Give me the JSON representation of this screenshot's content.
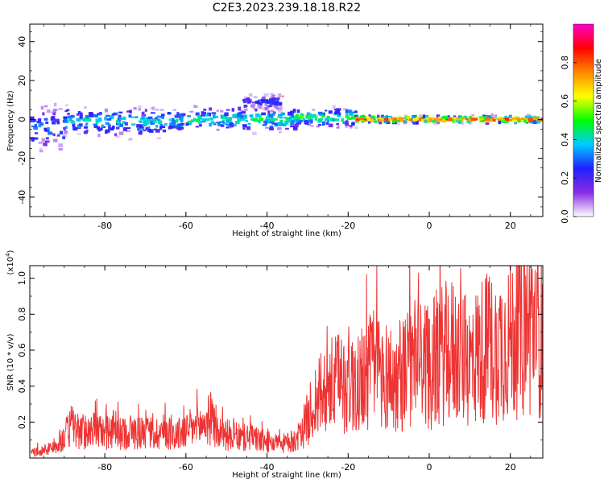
{
  "title": "C2E3.2023.239.18.18.R22",
  "chart_data": [
    {
      "type": "heatmap",
      "xlabel": "Height of straight line (km)",
      "ylabel": "Frequency (Hz)",
      "xlim": [
        -98.5,
        28
      ],
      "ylim": [
        -50,
        49
      ],
      "xticks": [
        -80,
        -60,
        -40,
        -20,
        0,
        20
      ],
      "yticks": [
        -40,
        -20,
        0,
        20,
        40
      ],
      "colorbar": {
        "label": "Normalized spectral amplitude",
        "range": [
          0,
          1
        ],
        "ticks": [
          0.0,
          0.2,
          0.4,
          0.6,
          0.8
        ],
        "colors": [
          "#ffffff",
          "#8a2be2",
          "#2020ff",
          "#00ccff",
          "#00ff00",
          "#ffff00",
          "#ff8800",
          "#ff0000",
          "#ff00cc"
        ]
      },
      "ridge_regions": [
        {
          "x": [
            -98,
            -90
          ],
          "freq_center": -4,
          "freq_spread": 10,
          "amplitude": 0.3
        },
        {
          "x": [
            -90,
            -60
          ],
          "freq_center": -1,
          "freq_spread": 6,
          "amplitude": 0.4
        },
        {
          "x": [
            -60,
            -33
          ],
          "freq_center": 0,
          "freq_spread": 5,
          "amplitude": 0.45
        },
        {
          "x": [
            -46,
            -36
          ],
          "freq_center": 9,
          "freq_spread": 3,
          "amplitude": 0.25
        },
        {
          "x": [
            -33,
            -18
          ],
          "freq_center": 1,
          "freq_spread": 4,
          "amplitude": 0.5
        },
        {
          "x": [
            -18,
            28
          ],
          "freq_center": 0,
          "freq_spread": 1.5,
          "amplitude": 0.85
        }
      ]
    },
    {
      "type": "line",
      "xlabel": "Height of straight line (km)",
      "ylabel": "SNR (10 * v/v)",
      "scale_label": "(x10",
      "scale_exp": "4",
      "scale_close": ")",
      "xlim": [
        -98.5,
        28
      ],
      "ylim": [
        0,
        1.07
      ],
      "xticks": [
        -80,
        -60,
        -40,
        -20,
        0,
        20
      ],
      "yticks": [
        0.2,
        0.4,
        0.6,
        0.8,
        1.0
      ],
      "series": [
        {
          "color": "#ee3333",
          "x": [
            -98,
            -96,
            -94,
            -92,
            -90,
            -88,
            -86,
            -84,
            -82,
            -80,
            -78,
            -76,
            -74,
            -72,
            -70,
            -68,
            -66,
            -64,
            -62,
            -60,
            -58,
            -56,
            -54,
            -52,
            -50,
            -48,
            -46,
            -44,
            -42,
            -40,
            -38,
            -36,
            -34,
            -32,
            -30,
            -28,
            -26,
            -24,
            -22,
            -20,
            -18,
            -16,
            -14,
            -12,
            -10,
            -8,
            -6,
            -4,
            -2,
            0,
            2,
            4,
            6,
            8,
            10,
            12,
            14,
            16,
            18,
            20,
            22,
            24,
            26,
            28
          ],
          "y": [
            0.03,
            0.04,
            0.05,
            0.06,
            0.12,
            0.18,
            0.14,
            0.16,
            0.15,
            0.14,
            0.16,
            0.13,
            0.15,
            0.14,
            0.16,
            0.13,
            0.15,
            0.14,
            0.13,
            0.15,
            0.17,
            0.18,
            0.22,
            0.14,
            0.13,
            0.12,
            0.11,
            0.12,
            0.1,
            0.09,
            0.08,
            0.08,
            0.09,
            0.12,
            0.22,
            0.32,
            0.36,
            0.4,
            0.42,
            0.44,
            0.4,
            0.46,
            0.5,
            0.48,
            0.45,
            0.42,
            0.48,
            0.52,
            0.55,
            0.5,
            0.56,
            0.58,
            0.6,
            0.55,
            0.52,
            0.58,
            0.62,
            0.6,
            0.64,
            0.66,
            0.7,
            0.72,
            0.74,
            0.7
          ]
        }
      ]
    }
  ]
}
